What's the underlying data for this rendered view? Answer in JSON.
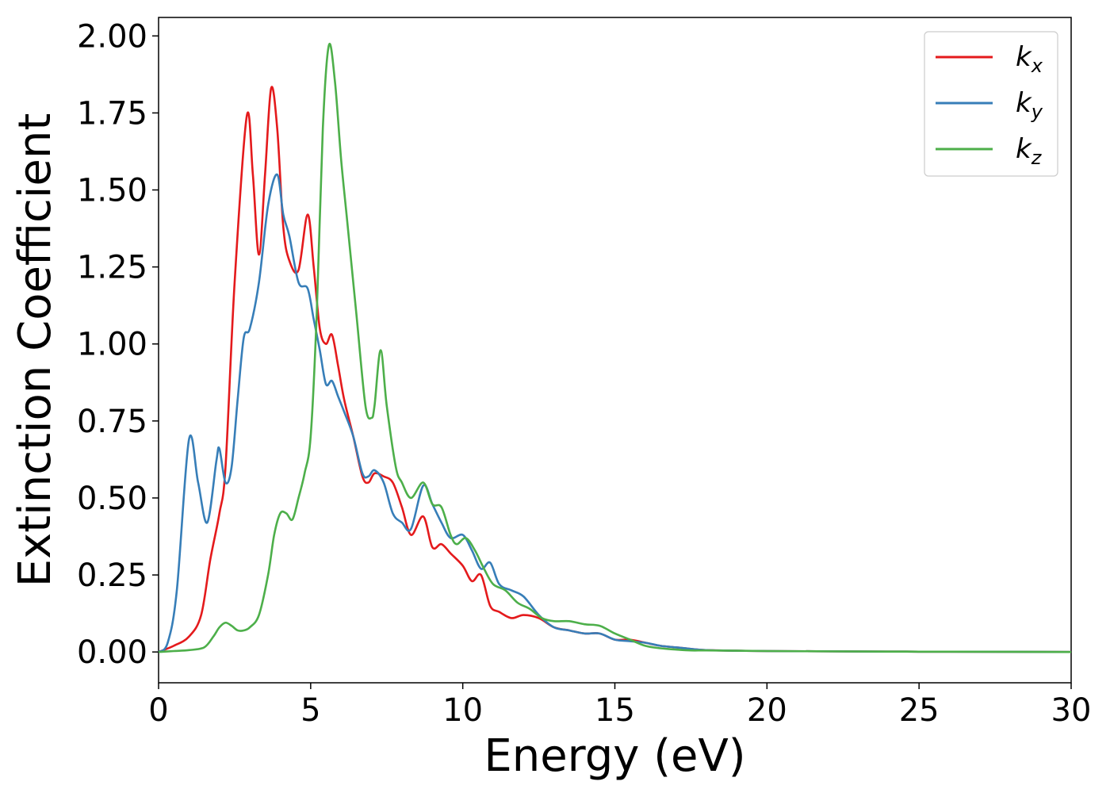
{
  "chart_data": {
    "type": "line",
    "title": "",
    "xlabel": "Energy (eV)",
    "ylabel": "Extinction Coefficient",
    "xlim": [
      0,
      30
    ],
    "ylim": [
      -0.1,
      2.06
    ],
    "xticks": [
      0,
      5,
      10,
      15,
      20,
      25,
      30
    ],
    "xtick_labels": [
      "0",
      "5",
      "10",
      "15",
      "20",
      "25",
      "30"
    ],
    "yticks": [
      0,
      0.25,
      0.5,
      0.75,
      1.0,
      1.25,
      1.5,
      1.75,
      2.0
    ],
    "ytick_labels": [
      "0.00",
      "0.25",
      "0.50",
      "0.75",
      "1.00",
      "1.25",
      "1.50",
      "1.75",
      "2.00"
    ],
    "grid": false,
    "legend_position": "top-right",
    "series": [
      {
        "name": "kx",
        "label_base": "k",
        "label_sub": "x",
        "color": "#e41a1c",
        "x": [
          0,
          0.5,
          1.0,
          1.4,
          1.7,
          2.0,
          2.2,
          2.5,
          2.9,
          3.1,
          3.3,
          3.5,
          3.7,
          3.9,
          4.1,
          4.3,
          4.6,
          4.9,
          5.1,
          5.3,
          5.5,
          5.7,
          5.9,
          6.1,
          6.4,
          6.7,
          6.9,
          7.1,
          7.4,
          7.7,
          8.0,
          8.3,
          8.7,
          9.0,
          9.3,
          9.6,
          10.0,
          10.3,
          10.6,
          10.9,
          11.2,
          11.6,
          12.0,
          12.5,
          13.0,
          13.5,
          14.0,
          14.5,
          15.0,
          15.5,
          16.0,
          16.5,
          17.0,
          17.5,
          18,
          19,
          20,
          22,
          25,
          28,
          30
        ],
        "y": [
          0.0,
          0.02,
          0.05,
          0.12,
          0.3,
          0.45,
          0.6,
          1.2,
          1.74,
          1.55,
          1.29,
          1.55,
          1.83,
          1.7,
          1.38,
          1.27,
          1.24,
          1.42,
          1.25,
          1.05,
          1.0,
          1.03,
          0.93,
          0.82,
          0.7,
          0.57,
          0.55,
          0.58,
          0.57,
          0.55,
          0.47,
          0.38,
          0.44,
          0.34,
          0.35,
          0.32,
          0.28,
          0.23,
          0.25,
          0.15,
          0.13,
          0.11,
          0.12,
          0.11,
          0.08,
          0.07,
          0.06,
          0.06,
          0.04,
          0.04,
          0.03,
          0.02,
          0.015,
          0.01,
          0.006,
          0.004,
          0.003,
          0.002,
          0.001,
          0.0005,
          0.0
        ]
      },
      {
        "name": "ky",
        "label_base": "k",
        "label_sub": "y",
        "color": "#377eb8",
        "x": [
          0,
          0.3,
          0.6,
          1.0,
          1.3,
          1.6,
          1.9,
          2.0,
          2.2,
          2.4,
          2.6,
          2.8,
          3.0,
          3.3,
          3.6,
          3.9,
          4.1,
          4.3,
          4.6,
          4.9,
          5.1,
          5.3,
          5.5,
          5.7,
          5.9,
          6.1,
          6.4,
          6.7,
          6.9,
          7.1,
          7.4,
          7.7,
          8.0,
          8.3,
          8.7,
          9.0,
          9.3,
          9.6,
          10.0,
          10.3,
          10.6,
          10.9,
          11.2,
          11.6,
          12.0,
          12.5,
          13.0,
          13.5,
          14.0,
          14.5,
          15.0,
          15.5,
          16.0,
          16.5,
          17.0,
          17.5,
          18,
          19,
          20,
          22,
          25,
          28,
          30
        ],
        "y": [
          0.0,
          0.03,
          0.2,
          0.69,
          0.55,
          0.42,
          0.62,
          0.66,
          0.55,
          0.6,
          0.82,
          1.02,
          1.05,
          1.2,
          1.45,
          1.55,
          1.42,
          1.35,
          1.2,
          1.18,
          1.08,
          0.98,
          0.87,
          0.88,
          0.83,
          0.78,
          0.7,
          0.58,
          0.57,
          0.59,
          0.55,
          0.45,
          0.42,
          0.4,
          0.54,
          0.48,
          0.42,
          0.37,
          0.38,
          0.33,
          0.27,
          0.29,
          0.22,
          0.2,
          0.18,
          0.12,
          0.08,
          0.07,
          0.06,
          0.06,
          0.04,
          0.035,
          0.03,
          0.02,
          0.015,
          0.01,
          0.006,
          0.004,
          0.003,
          0.002,
          0.001,
          0.0005,
          0.0
        ]
      },
      {
        "name": "kz",
        "label_base": "k",
        "label_sub": "z",
        "color": "#4daf4a",
        "x": [
          0,
          0.5,
          1.0,
          1.5,
          1.8,
          2.0,
          2.2,
          2.4,
          2.6,
          2.8,
          3.0,
          3.3,
          3.6,
          3.8,
          4.0,
          4.2,
          4.4,
          4.6,
          4.8,
          5.0,
          5.2,
          5.4,
          5.6,
          5.8,
          6.0,
          6.2,
          6.5,
          6.8,
          7.0,
          7.1,
          7.3,
          7.5,
          7.8,
          8.0,
          8.3,
          8.7,
          9.0,
          9.3,
          9.6,
          9.8,
          10.1,
          10.4,
          10.7,
          11.0,
          11.4,
          11.8,
          12.2,
          12.6,
          13.0,
          13.5,
          14.0,
          14.5,
          15.0,
          15.5,
          16.0,
          16.5,
          17.0,
          17.5,
          18,
          19,
          20,
          22,
          25,
          28,
          30
        ],
        "y": [
          0.0,
          0.003,
          0.006,
          0.015,
          0.05,
          0.08,
          0.095,
          0.085,
          0.07,
          0.07,
          0.08,
          0.12,
          0.25,
          0.38,
          0.45,
          0.45,
          0.43,
          0.5,
          0.58,
          0.7,
          1.1,
          1.7,
          1.97,
          1.85,
          1.6,
          1.4,
          1.1,
          0.8,
          0.76,
          0.8,
          0.98,
          0.8,
          0.6,
          0.55,
          0.5,
          0.55,
          0.48,
          0.47,
          0.38,
          0.35,
          0.37,
          0.33,
          0.27,
          0.22,
          0.2,
          0.16,
          0.14,
          0.11,
          0.1,
          0.1,
          0.09,
          0.085,
          0.06,
          0.04,
          0.02,
          0.012,
          0.008,
          0.005,
          0.005,
          0.004,
          0.003,
          0.002,
          0.001,
          0.0005,
          0.0
        ]
      }
    ]
  }
}
